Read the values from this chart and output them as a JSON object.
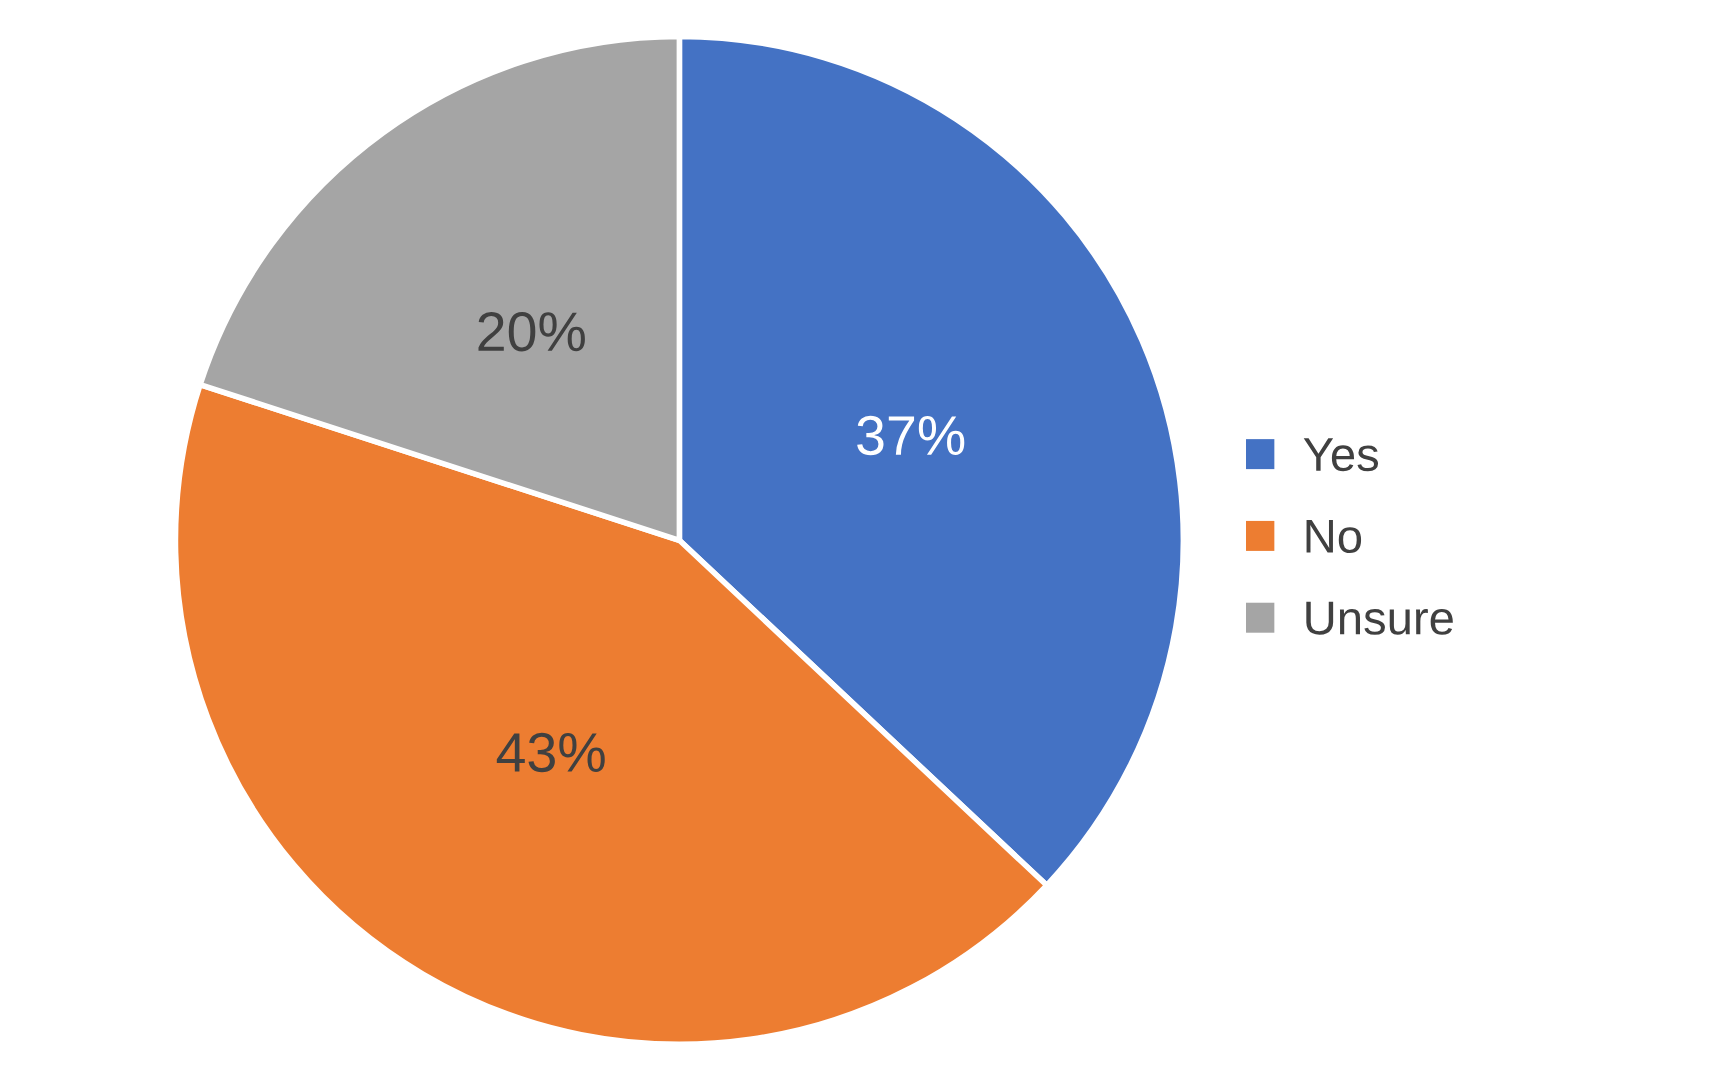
{
  "chart_data": {
    "type": "pie",
    "categories": [
      "Yes",
      "No",
      "Unsure"
    ],
    "values": [
      37,
      43,
      20
    ],
    "colors": [
      "#4472c4",
      "#ed7d31",
      "#a5a5a5"
    ],
    "value_labels": [
      "37%",
      "43%",
      "20%"
    ],
    "legend": "right"
  }
}
